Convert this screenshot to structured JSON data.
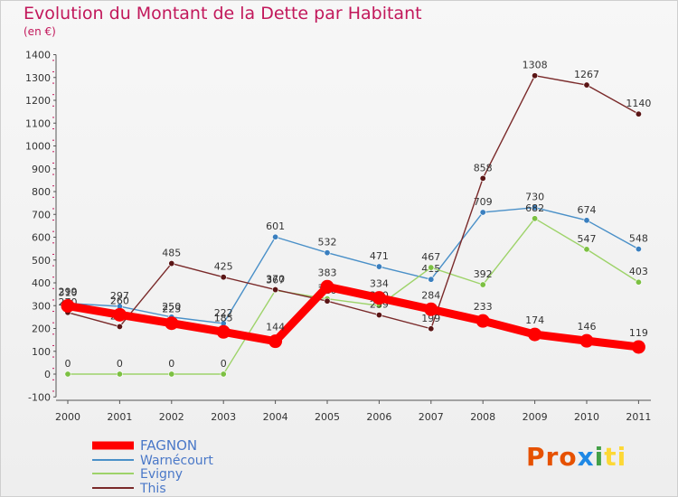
{
  "title": "Evolution du Montant de la Dette par Habitant",
  "unit": "(en €)",
  "logo": {
    "p1": "Pro",
    "p2": "x",
    "p3": "i",
    "p4": "ti"
  },
  "chart_data": {
    "type": "line",
    "x": [
      "2000",
      "2001",
      "2002",
      "2003",
      "2004",
      "2005",
      "2006",
      "2007",
      "2008",
      "2009",
      "2010",
      "2011"
    ],
    "ylim": [
      -100,
      1400
    ],
    "yticks": [
      -100,
      0,
      100,
      200,
      300,
      400,
      500,
      600,
      700,
      800,
      900,
      1000,
      1100,
      1200,
      1300,
      1400
    ],
    "grid": false,
    "legend_position": "bottom-left",
    "series": [
      {
        "name": "Warnécourt",
        "color": "#4a90c8",
        "marker": "#3a7fbf",
        "values": [
          310,
          297,
          250,
          222,
          601,
          532,
          471,
          415,
          709,
          730,
          674,
          548
        ]
      },
      {
        "name": "Evigny",
        "color": "#9ed36a",
        "marker": "#7cc042",
        "values": [
          0,
          0,
          0,
          0,
          367,
          330,
          300,
          467,
          392,
          682,
          547,
          403
        ]
      },
      {
        "name": "This",
        "color": "#7a2a2a",
        "marker": "#5a1515",
        "values": [
          270,
          208,
          485,
          425,
          370,
          320,
          259,
          199,
          858,
          1308,
          1267,
          1140
        ]
      },
      {
        "name": "FAGNON",
        "color": "#ff0000",
        "marker": "#ff0000",
        "values": [
          299,
          260,
          223,
          185,
          144,
          383,
          334,
          284,
          233,
          174,
          146,
          119
        ]
      }
    ],
    "legend_order": [
      "FAGNON",
      "Warnécourt",
      "Evigny",
      "This"
    ]
  }
}
